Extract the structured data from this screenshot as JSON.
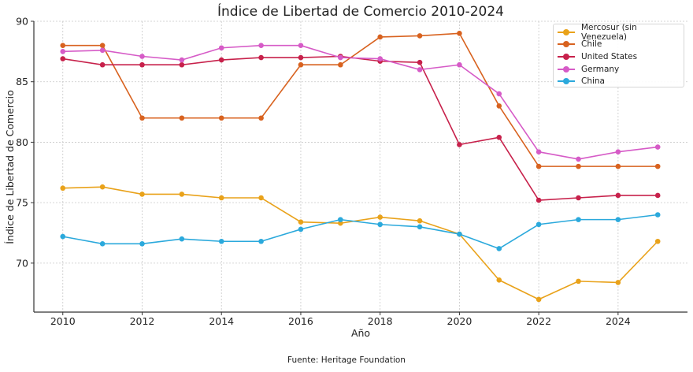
{
  "chart_data": {
    "type": "line",
    "title": "Índice de Libertad de Comercio 2010-2024",
    "xlabel": "Año",
    "ylabel": "Índice de Libertad de Comercio",
    "source": "Fuente: Heritage Foundation",
    "x": [
      2010,
      2011,
      2012,
      2013,
      2014,
      2015,
      2016,
      2017,
      2018,
      2019,
      2020,
      2021,
      2022,
      2023,
      2024,
      2025
    ],
    "xticks": [
      "2010",
      "2012",
      "2014",
      "2016",
      "2018",
      "2020",
      "2022",
      "2024"
    ],
    "yticks": [
      "70",
      "75",
      "80",
      "85",
      "90"
    ],
    "xlim": [
      2009.27,
      2025.75
    ],
    "ylim": [
      65.95,
      90
    ],
    "grid": true,
    "legend_position": "top-right",
    "series": [
      {
        "name": "Mercosur (sin Venezuela)",
        "color": "#E9A21A",
        "values": [
          76.2,
          76.3,
          75.7,
          75.7,
          75.4,
          75.4,
          73.4,
          73.3,
          73.8,
          73.5,
          72.4,
          68.6,
          67.0,
          68.5,
          68.4,
          71.8
        ]
      },
      {
        "name": "Chile",
        "color": "#D8621F",
        "values": [
          88.0,
          88.0,
          82.0,
          82.0,
          82.0,
          82.0,
          86.4,
          86.4,
          88.7,
          88.8,
          89.0,
          83.0,
          78.0,
          78.0,
          78.0,
          78.0
        ]
      },
      {
        "name": "United States",
        "color": "#C7214B",
        "values": [
          86.9,
          86.4,
          86.4,
          86.4,
          86.8,
          87.0,
          87.0,
          87.1,
          86.7,
          86.6,
          79.8,
          80.4,
          75.2,
          75.4,
          75.6,
          75.6
        ]
      },
      {
        "name": "Germany",
        "color": "#D65BC7",
        "values": [
          87.5,
          87.6,
          87.1,
          86.8,
          87.8,
          88.0,
          88.0,
          87.0,
          86.9,
          86.0,
          86.4,
          84.0,
          79.2,
          78.6,
          79.2,
          79.6
        ]
      },
      {
        "name": "China",
        "color": "#2BA9DC",
        "values": [
          72.2,
          71.6,
          71.6,
          72.0,
          71.8,
          71.8,
          72.8,
          73.6,
          73.2,
          73.0,
          72.4,
          71.2,
          73.2,
          73.6,
          73.6,
          74.0
        ]
      }
    ]
  }
}
